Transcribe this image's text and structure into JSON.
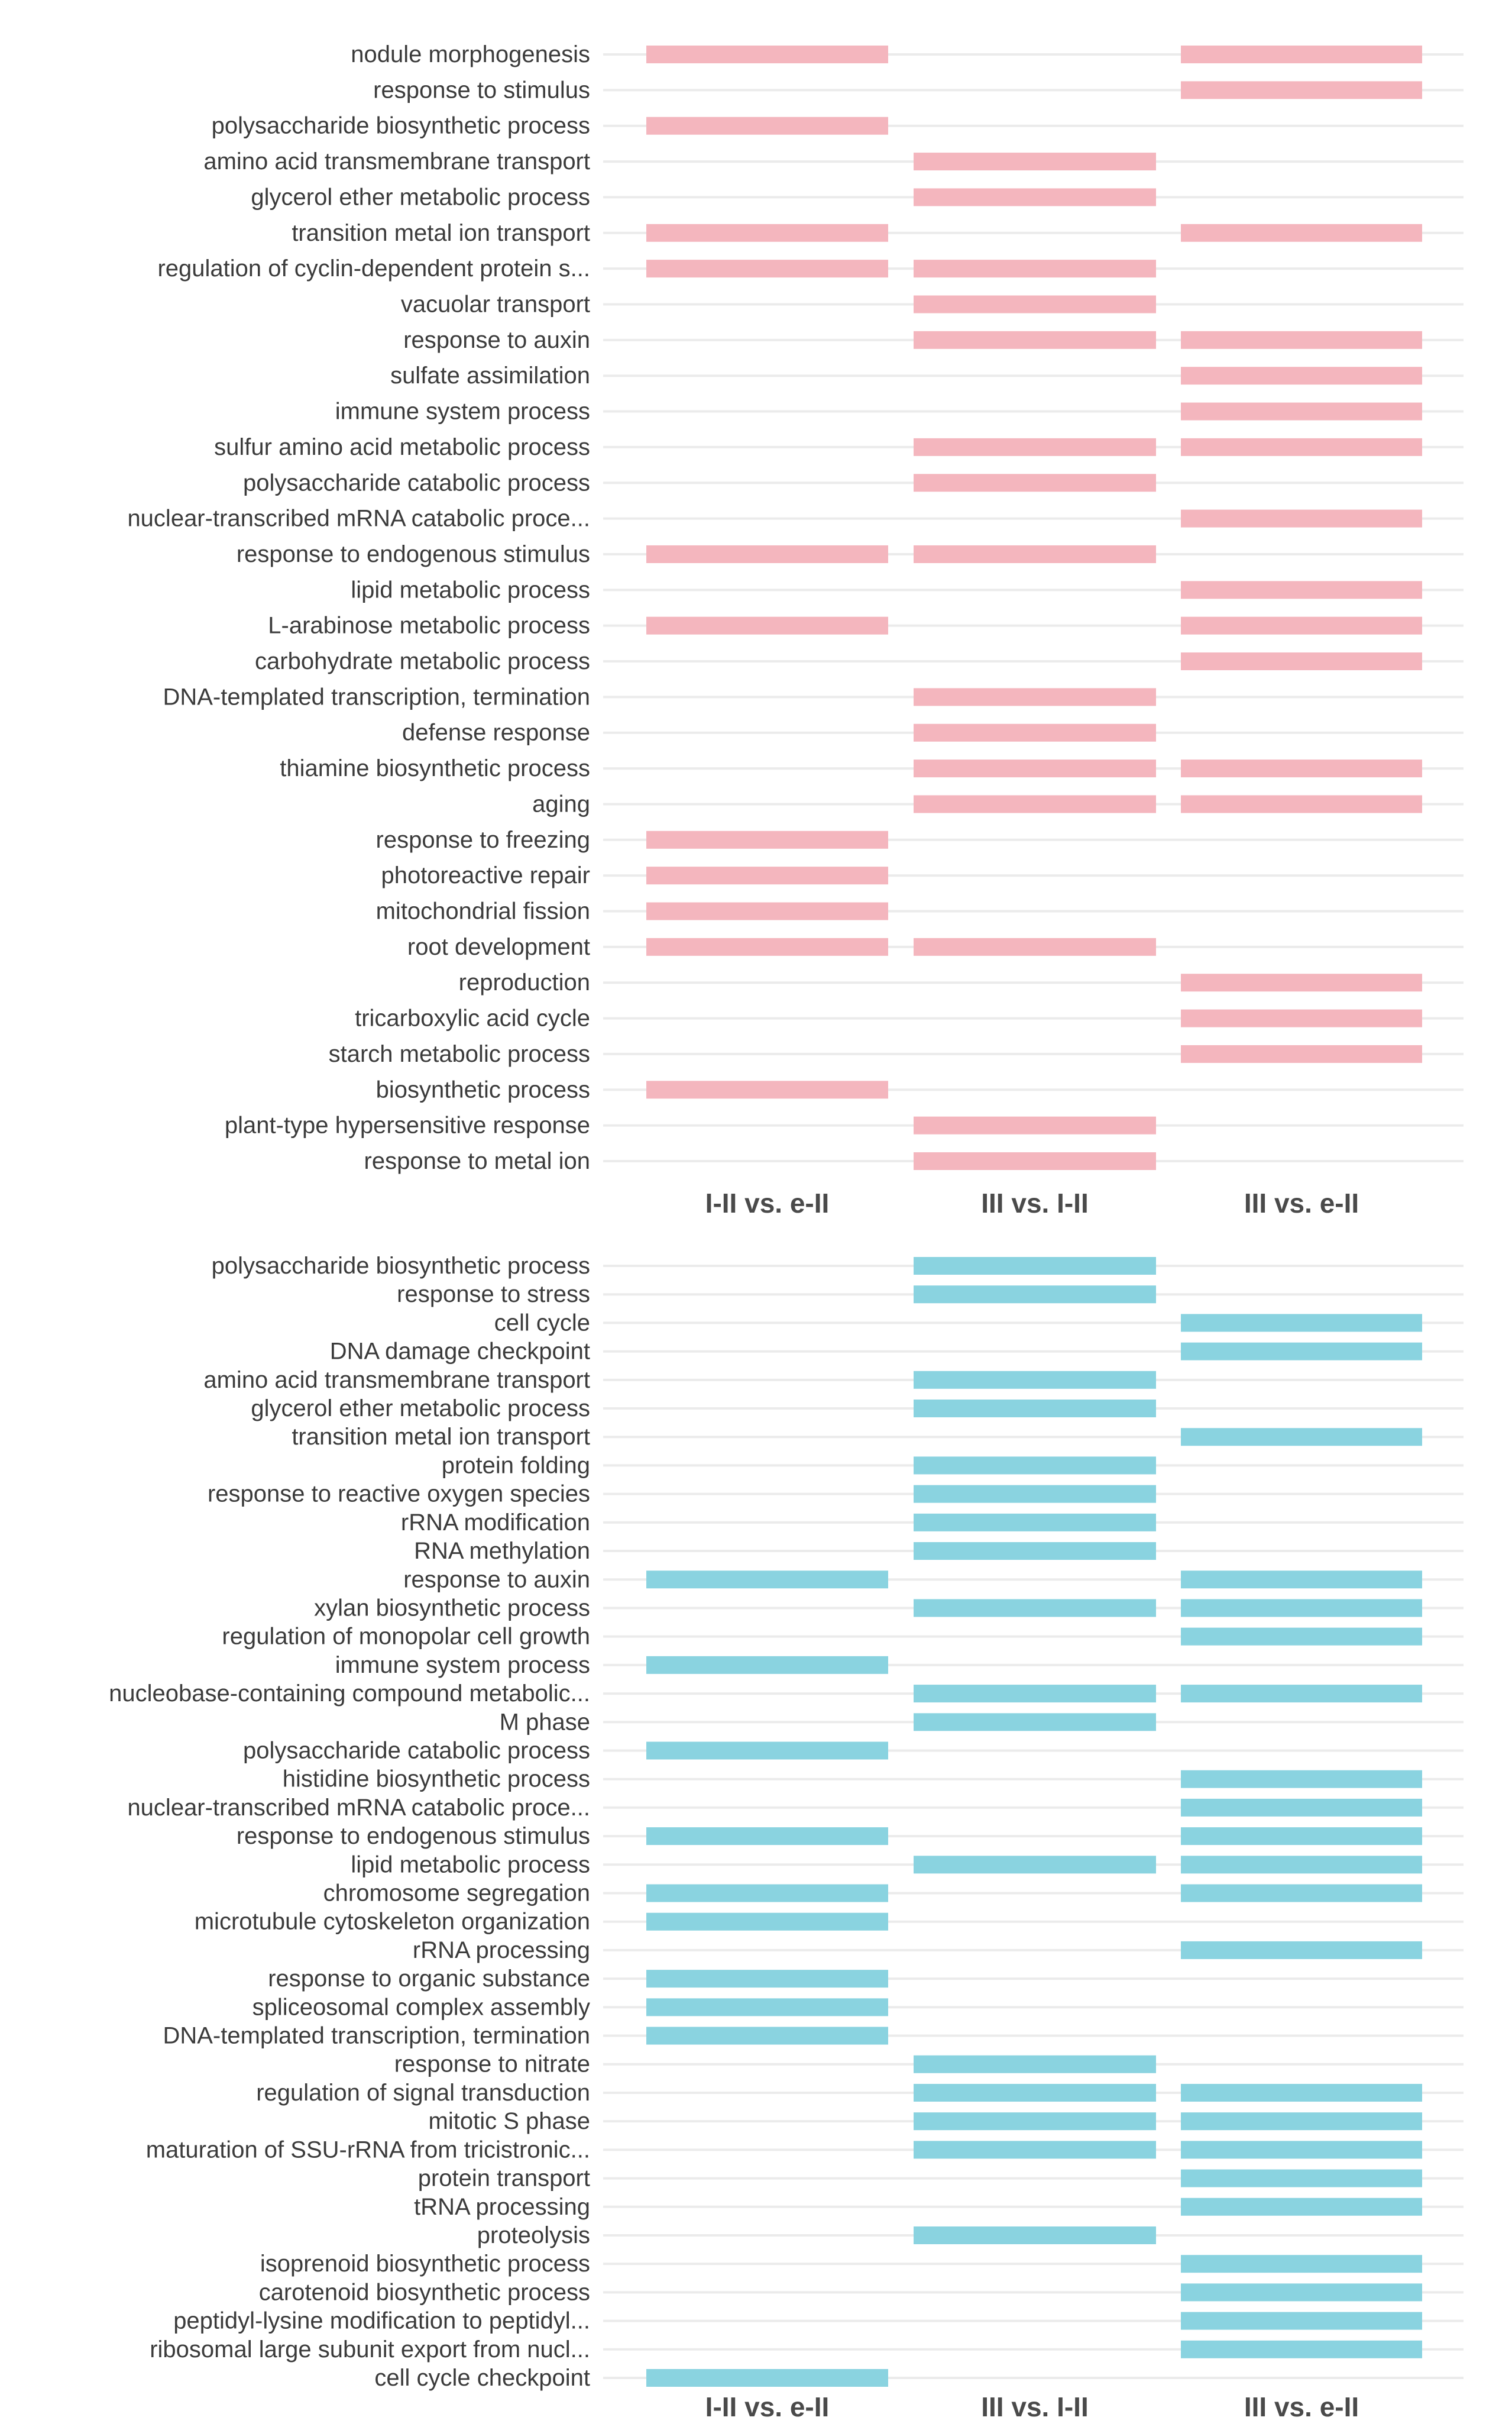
{
  "chart_data": [
    {
      "type": "bar",
      "orientation": "horizontal",
      "panel": "top",
      "color": "#f4b6be",
      "columns": [
        "I-II vs. e-II",
        "III vs. I-II",
        "III vs. e-II"
      ],
      "terms": [
        {
          "label": "nodule morphogenesis",
          "present": [
            true,
            false,
            true
          ]
        },
        {
          "label": "response to stimulus",
          "present": [
            false,
            false,
            true
          ]
        },
        {
          "label": "polysaccharide biosynthetic process",
          "present": [
            true,
            false,
            false
          ]
        },
        {
          "label": "amino acid transmembrane transport",
          "present": [
            false,
            true,
            false
          ]
        },
        {
          "label": "glycerol ether metabolic process",
          "present": [
            false,
            true,
            false
          ]
        },
        {
          "label": "transition metal ion transport",
          "present": [
            true,
            false,
            true
          ]
        },
        {
          "label": "regulation of cyclin-dependent protein s...",
          "present": [
            true,
            true,
            false
          ]
        },
        {
          "label": "vacuolar transport",
          "present": [
            false,
            true,
            false
          ]
        },
        {
          "label": "response to auxin",
          "present": [
            false,
            true,
            true
          ]
        },
        {
          "label": "sulfate assimilation",
          "present": [
            false,
            false,
            true
          ]
        },
        {
          "label": "immune system process",
          "present": [
            false,
            false,
            true
          ]
        },
        {
          "label": "sulfur amino acid metabolic process",
          "present": [
            false,
            true,
            true
          ]
        },
        {
          "label": "polysaccharide catabolic process",
          "present": [
            false,
            true,
            false
          ]
        },
        {
          "label": "nuclear-transcribed mRNA catabolic proce...",
          "present": [
            false,
            false,
            true
          ]
        },
        {
          "label": "response to endogenous stimulus",
          "present": [
            true,
            true,
            false
          ]
        },
        {
          "label": "lipid metabolic process",
          "present": [
            false,
            false,
            true
          ]
        },
        {
          "label": "L-arabinose metabolic process",
          "present": [
            true,
            false,
            true
          ]
        },
        {
          "label": "carbohydrate metabolic process",
          "present": [
            false,
            false,
            true
          ]
        },
        {
          "label": "DNA-templated transcription, termination",
          "present": [
            false,
            true,
            false
          ]
        },
        {
          "label": "defense response",
          "present": [
            false,
            true,
            false
          ]
        },
        {
          "label": "thiamine biosynthetic process",
          "present": [
            false,
            true,
            true
          ]
        },
        {
          "label": "aging",
          "present": [
            false,
            true,
            true
          ]
        },
        {
          "label": "response to freezing",
          "present": [
            true,
            false,
            false
          ]
        },
        {
          "label": "photoreactive repair",
          "present": [
            true,
            false,
            false
          ]
        },
        {
          "label": "mitochondrial fission",
          "present": [
            true,
            false,
            false
          ]
        },
        {
          "label": "root development",
          "present": [
            true,
            true,
            false
          ]
        },
        {
          "label": "reproduction",
          "present": [
            false,
            false,
            true
          ]
        },
        {
          "label": "tricarboxylic acid cycle",
          "present": [
            false,
            false,
            true
          ]
        },
        {
          "label": "starch metabolic process",
          "present": [
            false,
            false,
            true
          ]
        },
        {
          "label": "biosynthetic process",
          "present": [
            true,
            false,
            false
          ]
        },
        {
          "label": "plant-type hypersensitive response",
          "present": [
            false,
            true,
            false
          ]
        },
        {
          "label": "response to metal ion",
          "present": [
            false,
            true,
            false
          ]
        }
      ]
    },
    {
      "type": "bar",
      "orientation": "horizontal",
      "panel": "bottom",
      "color": "#8ad3e0",
      "columns": [
        "I-II vs. e-II",
        "III vs. I-II",
        "III vs. e-II"
      ],
      "terms": [
        {
          "label": "polysaccharide biosynthetic process",
          "present": [
            false,
            true,
            false
          ]
        },
        {
          "label": "response to stress",
          "present": [
            false,
            true,
            false
          ]
        },
        {
          "label": "cell cycle",
          "present": [
            false,
            false,
            true
          ]
        },
        {
          "label": "DNA damage checkpoint",
          "present": [
            false,
            false,
            true
          ]
        },
        {
          "label": "amino acid transmembrane transport",
          "present": [
            false,
            true,
            false
          ]
        },
        {
          "label": "glycerol ether metabolic process",
          "present": [
            false,
            true,
            false
          ]
        },
        {
          "label": "transition metal ion transport",
          "present": [
            false,
            false,
            true
          ]
        },
        {
          "label": "protein folding",
          "present": [
            false,
            true,
            false
          ]
        },
        {
          "label": "response to reactive oxygen species",
          "present": [
            false,
            true,
            false
          ]
        },
        {
          "label": "rRNA modification",
          "present": [
            false,
            true,
            false
          ]
        },
        {
          "label": "RNA methylation",
          "present": [
            false,
            true,
            false
          ]
        },
        {
          "label": "response to auxin",
          "present": [
            true,
            false,
            true
          ]
        },
        {
          "label": "xylan biosynthetic process",
          "present": [
            false,
            true,
            true
          ]
        },
        {
          "label": "regulation of monopolar cell growth",
          "present": [
            false,
            false,
            true
          ]
        },
        {
          "label": "immune system process",
          "present": [
            true,
            false,
            false
          ]
        },
        {
          "label": "nucleobase-containing compound metabolic...",
          "present": [
            false,
            true,
            true
          ]
        },
        {
          "label": "M phase",
          "present": [
            false,
            true,
            false
          ]
        },
        {
          "label": "polysaccharide catabolic process",
          "present": [
            true,
            false,
            false
          ]
        },
        {
          "label": "histidine biosynthetic process",
          "present": [
            false,
            false,
            true
          ]
        },
        {
          "label": "nuclear-transcribed mRNA catabolic proce...",
          "present": [
            false,
            false,
            true
          ]
        },
        {
          "label": "response to endogenous stimulus",
          "present": [
            true,
            false,
            true
          ]
        },
        {
          "label": "lipid metabolic process",
          "present": [
            false,
            true,
            true
          ]
        },
        {
          "label": "chromosome segregation",
          "present": [
            true,
            false,
            true
          ]
        },
        {
          "label": "microtubule cytoskeleton organization",
          "present": [
            true,
            false,
            false
          ]
        },
        {
          "label": "rRNA processing",
          "present": [
            false,
            false,
            true
          ]
        },
        {
          "label": "response to organic substance",
          "present": [
            true,
            false,
            false
          ]
        },
        {
          "label": "spliceosomal complex assembly",
          "present": [
            true,
            false,
            false
          ]
        },
        {
          "label": "DNA-templated transcription, termination",
          "present": [
            true,
            false,
            false
          ]
        },
        {
          "label": "response to nitrate",
          "present": [
            false,
            true,
            false
          ]
        },
        {
          "label": "regulation of signal transduction",
          "present": [
            false,
            true,
            true
          ]
        },
        {
          "label": "mitotic S phase",
          "present": [
            false,
            true,
            true
          ]
        },
        {
          "label": "maturation of SSU-rRNA from tricistronic...",
          "present": [
            false,
            true,
            true
          ]
        },
        {
          "label": "protein transport",
          "present": [
            false,
            false,
            true
          ]
        },
        {
          "label": "tRNA processing",
          "present": [
            false,
            false,
            true
          ]
        },
        {
          "label": "proteolysis",
          "present": [
            false,
            true,
            false
          ]
        },
        {
          "label": "isoprenoid biosynthetic process",
          "present": [
            false,
            false,
            true
          ]
        },
        {
          "label": "carotenoid biosynthetic process",
          "present": [
            false,
            false,
            true
          ]
        },
        {
          "label": "peptidyl-lysine modification to peptidyl...",
          "present": [
            false,
            false,
            true
          ]
        },
        {
          "label": "ribosomal large subunit export from nucl...",
          "present": [
            false,
            false,
            true
          ]
        },
        {
          "label": "cell cycle checkpoint",
          "present": [
            true,
            false,
            false
          ]
        }
      ]
    }
  ]
}
